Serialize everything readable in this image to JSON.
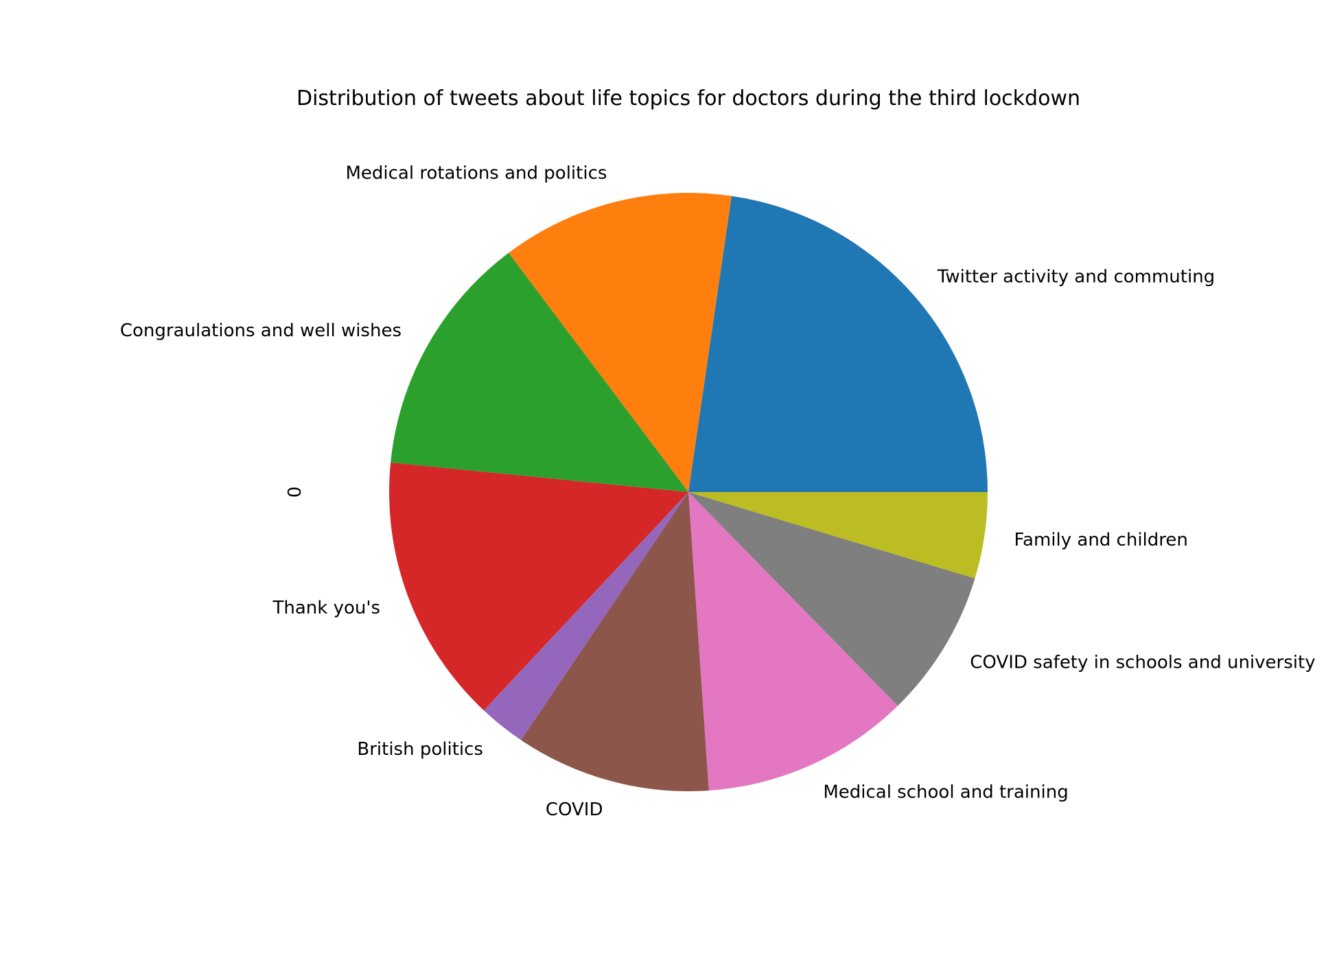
{
  "chart_data": {
    "type": "pie",
    "title": "Distribution of tweets about life topics for doctors during the third lockdown",
    "ylabel": "0",
    "start_angle_deg": 0,
    "direction": "counterclockwise",
    "legend": "none",
    "slices": [
      {
        "label": "Twitter activity and commuting",
        "value": 22.4,
        "color": "#1f77b4"
      },
      {
        "label": "Medical rotations and politics",
        "value": 12.4,
        "color": "#ff7f0e"
      },
      {
        "label": "Congraulations and well wishes",
        "value": 13.0,
        "color": "#2ca02c"
      },
      {
        "label": "Thank you's",
        "value": 14.4,
        "color": "#d62728"
      },
      {
        "label": "British politics",
        "value": 2.5,
        "color": "#9467bd"
      },
      {
        "label": "COVID",
        "value": 10.4,
        "color": "#8c564b"
      },
      {
        "label": "Medical school and training",
        "value": 11.1,
        "color": "#e377c2"
      },
      {
        "label": "COVID safety in schools and university",
        "value": 7.9,
        "color": "#7f7f7f"
      },
      {
        "label": "Family and children",
        "value": 4.6,
        "color": "#bcbd22"
      }
    ]
  }
}
